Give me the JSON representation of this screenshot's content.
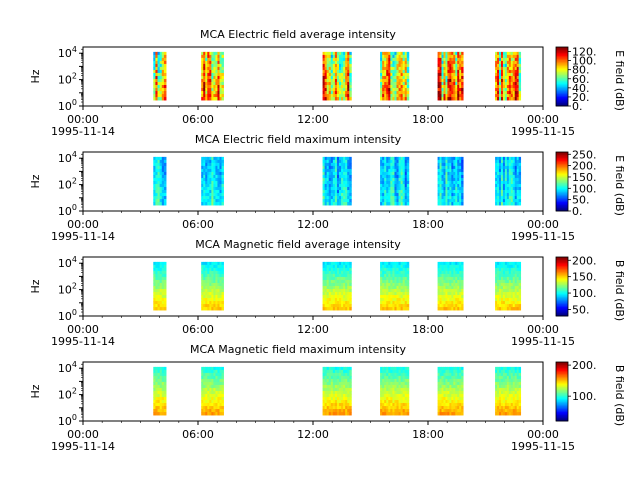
{
  "chart_data": [
    {
      "type": "heatmap",
      "title": "MCA  Electric field average intensity",
      "ylabel": "Hz",
      "y_scale": "log",
      "y_ticks": [
        {
          "base": "10",
          "exp": "0"
        },
        {
          "base": "10",
          "exp": "2"
        },
        {
          "base": "10",
          "exp": "4"
        }
      ],
      "x_ticks": [
        {
          "label": "00:00",
          "date": "1995-11-14"
        },
        {
          "label": "06:00",
          "date": ""
        },
        {
          "label": "12:00",
          "date": ""
        },
        {
          "label": "18:00",
          "date": ""
        },
        {
          "label": "00:00",
          "date": "1995-11-15"
        }
      ],
      "xlim": [
        "1995-11-14T00:00",
        "1995-11-15T00:00"
      ],
      "colorbar": {
        "label": "E field (dB)",
        "min": 0,
        "max": 130,
        "ticks": [
          "0.",
          "20.",
          "40.",
          "60.",
          "80.",
          "100.",
          "120."
        ]
      },
      "palette": "low",
      "segments": [
        {
          "start": "03:40",
          "end": "04:20"
        },
        {
          "start": "06:10",
          "end": "07:20"
        },
        {
          "start": "12:30",
          "end": "14:00"
        },
        {
          "start": "15:30",
          "end": "17:00"
        },
        {
          "start": "18:30",
          "end": "19:50"
        },
        {
          "start": "21:30",
          "end": "22:50"
        }
      ]
    },
    {
      "type": "heatmap",
      "title": "MCA  Electric field maximum intensity",
      "ylabel": "Hz",
      "y_scale": "log",
      "y_ticks": [
        {
          "base": "10",
          "exp": "0"
        },
        {
          "base": "10",
          "exp": "2"
        },
        {
          "base": "10",
          "exp": "4"
        }
      ],
      "x_ticks": [
        {
          "label": "00:00",
          "date": "1995-11-14"
        },
        {
          "label": "06:00",
          "date": ""
        },
        {
          "label": "12:00",
          "date": ""
        },
        {
          "label": "18:00",
          "date": ""
        },
        {
          "label": "00:00",
          "date": "1995-11-15"
        }
      ],
      "xlim": [
        "1995-11-14T00:00",
        "1995-11-15T00:00"
      ],
      "colorbar": {
        "label": "E field (dB)",
        "min": 0,
        "max": 260,
        "ticks": [
          "0.",
          "50.",
          "100.",
          "150.",
          "200.",
          "250."
        ]
      },
      "palette": "cool",
      "segments": [
        {
          "start": "03:40",
          "end": "04:20"
        },
        {
          "start": "06:10",
          "end": "07:20"
        },
        {
          "start": "12:30",
          "end": "14:00"
        },
        {
          "start": "15:30",
          "end": "17:00"
        },
        {
          "start": "18:30",
          "end": "19:50"
        },
        {
          "start": "21:30",
          "end": "22:50"
        }
      ]
    },
    {
      "type": "heatmap",
      "title": "MCA  Magnetic field average intensity",
      "ylabel": "Hz",
      "y_scale": "log",
      "y_ticks": [
        {
          "base": "10",
          "exp": "0"
        },
        {
          "base": "10",
          "exp": "2"
        },
        {
          "base": "10",
          "exp": "4"
        }
      ],
      "x_ticks": [
        {
          "label": "00:00",
          "date": "1995-11-14"
        },
        {
          "label": "06:00",
          "date": ""
        },
        {
          "label": "12:00",
          "date": ""
        },
        {
          "label": "18:00",
          "date": ""
        },
        {
          "label": "00:00",
          "date": "1995-11-15"
        }
      ],
      "xlim": [
        "1995-11-14T00:00",
        "1995-11-15T00:00"
      ],
      "colorbar": {
        "label": "B field (dB)",
        "min": 30,
        "max": 210,
        "ticks": [
          "50.",
          "100.",
          "150.",
          "200."
        ]
      },
      "palette": "mag",
      "segments": [
        {
          "start": "03:40",
          "end": "04:20"
        },
        {
          "start": "06:10",
          "end": "07:20"
        },
        {
          "start": "12:30",
          "end": "14:00"
        },
        {
          "start": "15:30",
          "end": "17:00"
        },
        {
          "start": "18:30",
          "end": "19:50"
        },
        {
          "start": "21:30",
          "end": "22:50"
        }
      ]
    },
    {
      "type": "heatmap",
      "title": "MCA  Magnetic field maximum intensity",
      "ylabel": "Hz",
      "y_scale": "log",
      "y_ticks": [
        {
          "base": "10",
          "exp": "0"
        },
        {
          "base": "10",
          "exp": "2"
        },
        {
          "base": "10",
          "exp": "4"
        }
      ],
      "x_ticks": [
        {
          "label": "00:00",
          "date": "1995-11-14"
        },
        {
          "label": "06:00",
          "date": ""
        },
        {
          "label": "12:00",
          "date": ""
        },
        {
          "label": "18:00",
          "date": ""
        },
        {
          "label": "00:00",
          "date": "1995-11-15"
        }
      ],
      "xlim": [
        "1995-11-14T00:00",
        "1995-11-15T00:00"
      ],
      "colorbar": {
        "label": "B field (dB)",
        "min": 20,
        "max": 210,
        "ticks": [
          "100.",
          "200."
        ]
      },
      "palette": "magmax",
      "segments": [
        {
          "start": "03:40",
          "end": "04:20"
        },
        {
          "start": "06:10",
          "end": "07:20"
        },
        {
          "start": "12:30",
          "end": "14:00"
        },
        {
          "start": "15:30",
          "end": "17:00"
        },
        {
          "start": "18:30",
          "end": "19:50"
        },
        {
          "start": "21:30",
          "end": "22:50"
        }
      ]
    }
  ]
}
